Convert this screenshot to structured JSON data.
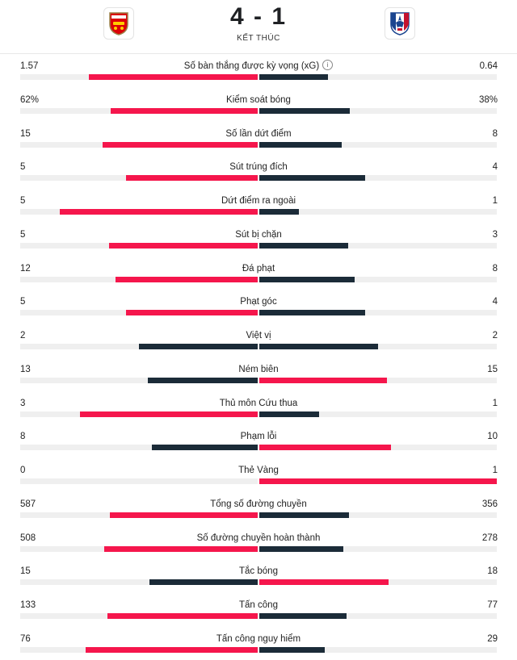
{
  "match": {
    "score": "4 - 1",
    "status": "KẾT THÚC",
    "home_logo": "arsenal-crest",
    "away_logo": "crystal-palace-crest"
  },
  "colors": {
    "highlight": "#f5164c",
    "dark": "#1b2b38",
    "track": "#efefef"
  },
  "stats": [
    {
      "label": "Số bàn thắng được kỳ vọng (xG)",
      "home": "1.57",
      "away": "0.64",
      "home_num": 1.57,
      "away_num": 0.64,
      "info": true
    },
    {
      "label": "Kiểm soát bóng",
      "home": "62%",
      "away": "38%",
      "home_num": 62,
      "away_num": 38
    },
    {
      "label": "Số lần dứt điểm",
      "home": "15",
      "away": "8",
      "home_num": 15,
      "away_num": 8
    },
    {
      "label": "Sút trúng đích",
      "home": "5",
      "away": "4",
      "home_num": 5,
      "away_num": 4
    },
    {
      "label": "Dứt điểm ra ngoài",
      "home": "5",
      "away": "1",
      "home_num": 5,
      "away_num": 1
    },
    {
      "label": "Sút bị chặn",
      "home": "5",
      "away": "3",
      "home_num": 5,
      "away_num": 3
    },
    {
      "label": "Đá phạt",
      "home": "12",
      "away": "8",
      "home_num": 12,
      "away_num": 8
    },
    {
      "label": "Phạt góc",
      "home": "5",
      "away": "4",
      "home_num": 5,
      "away_num": 4
    },
    {
      "label": "Việt vị",
      "home": "2",
      "away": "2",
      "home_num": 2,
      "away_num": 2
    },
    {
      "label": "Ném biên",
      "home": "13",
      "away": "15",
      "home_num": 13,
      "away_num": 15
    },
    {
      "label": "Thủ môn Cứu thua",
      "home": "3",
      "away": "1",
      "home_num": 3,
      "away_num": 1
    },
    {
      "label": "Phạm lỗi",
      "home": "8",
      "away": "10",
      "home_num": 8,
      "away_num": 10
    },
    {
      "label": "Thẻ Vàng",
      "home": "0",
      "away": "1",
      "home_num": 0,
      "away_num": 1
    },
    {
      "label": "Tổng số đường chuyền",
      "home": "587",
      "away": "356",
      "home_num": 587,
      "away_num": 356
    },
    {
      "label": "Số đường chuyền hoàn thành",
      "home": "508",
      "away": "278",
      "home_num": 508,
      "away_num": 278
    },
    {
      "label": "Tắc bóng",
      "home": "15",
      "away": "18",
      "home_num": 15,
      "away_num": 18
    },
    {
      "label": "Tấn công",
      "home": "133",
      "away": "77",
      "home_num": 133,
      "away_num": 77
    },
    {
      "label": "Tấn công nguy hiểm",
      "home": "76",
      "away": "29",
      "home_num": 76,
      "away_num": 29
    }
  ]
}
